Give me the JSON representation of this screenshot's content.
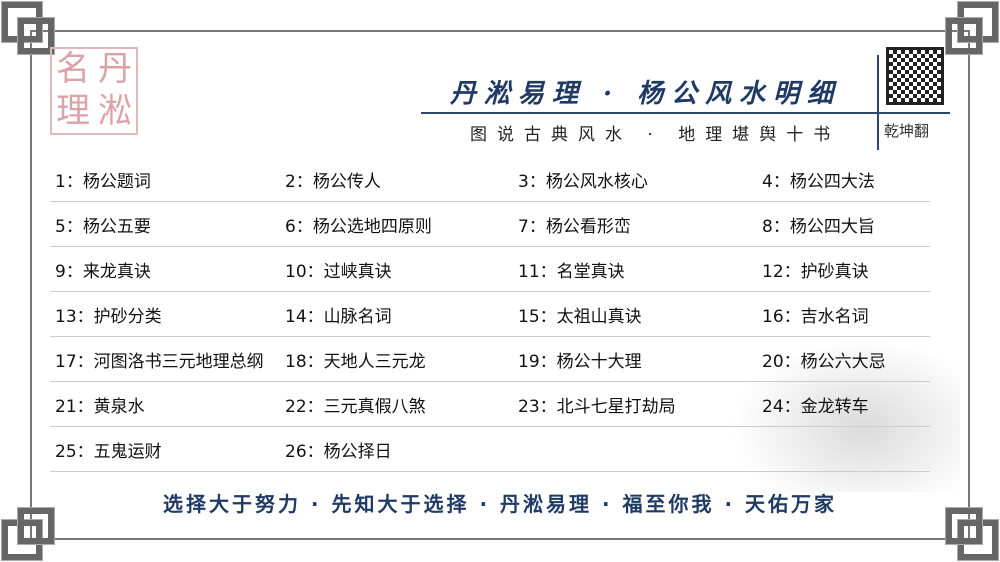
{
  "seal": {
    "chars": [
      "名",
      "丹",
      "理",
      "淞"
    ]
  },
  "header": {
    "title": "丹淞易理 · 杨公风水明细",
    "subtitle": "图说古典风水 · 地理堪舆十书",
    "qr_label": "乾坤翻"
  },
  "items": [
    [
      "1：杨公题词",
      "2：杨公传人",
      "3：杨公风水核心",
      "4：杨公四大法"
    ],
    [
      "5：杨公五要",
      "6：杨公选地四原则",
      "7：杨公看形峦",
      "8：杨公四大旨"
    ],
    [
      "9：来龙真诀",
      "10：过峡真诀",
      "11：名堂真诀",
      "12：护砂真诀"
    ],
    [
      "13：护砂分类",
      "14：山脉名词",
      "15：太祖山真诀",
      "16：吉水名词"
    ],
    [
      "17：河图洛书三元地理总纲",
      "18：天地人三元龙",
      "19：杨公十大理",
      "20：杨公六大忌"
    ],
    [
      "21：黄泉水",
      "22：三元真假八煞",
      "23：北斗七星打劫局",
      "24：金龙转车"
    ],
    [
      "25：五鬼运财",
      "26：杨公择日"
    ]
  ],
  "footer": "选择大于努力 · 先知大于选择 · 丹淞易理 · 福至你我 · 天佑万家",
  "colors": {
    "accent": "#1f3a64",
    "seal": "#d9a3a8"
  }
}
